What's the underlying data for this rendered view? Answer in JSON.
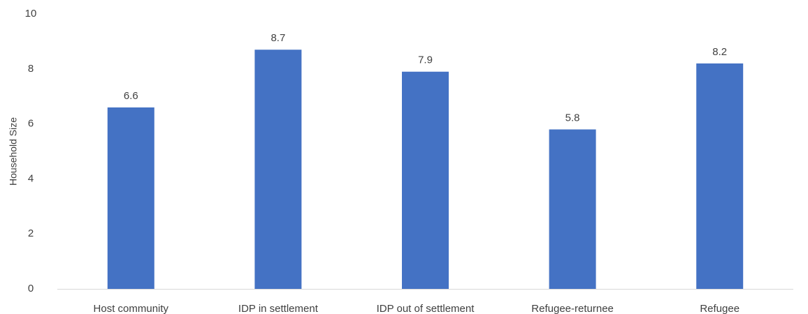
{
  "chart_data": {
    "type": "bar",
    "title": "",
    "xlabel": "",
    "ylabel": "Household Size",
    "ylim": [
      0,
      10
    ],
    "yticks": [
      0,
      2,
      4,
      6,
      8,
      10
    ],
    "grid": false,
    "legend": "none",
    "categories": [
      "Host community",
      "IDP in settlement",
      "IDP out of settlement",
      "Refugee-returnee",
      "Refugee"
    ],
    "values": [
      6.6,
      8.7,
      7.9,
      5.8,
      8.2
    ],
    "data_labels": [
      "6.6",
      "8.7",
      "7.9",
      "5.8",
      "8.2"
    ],
    "colors": {
      "bar": "#4472C4",
      "axis": "#D9D9D9",
      "text": "#404040"
    }
  }
}
